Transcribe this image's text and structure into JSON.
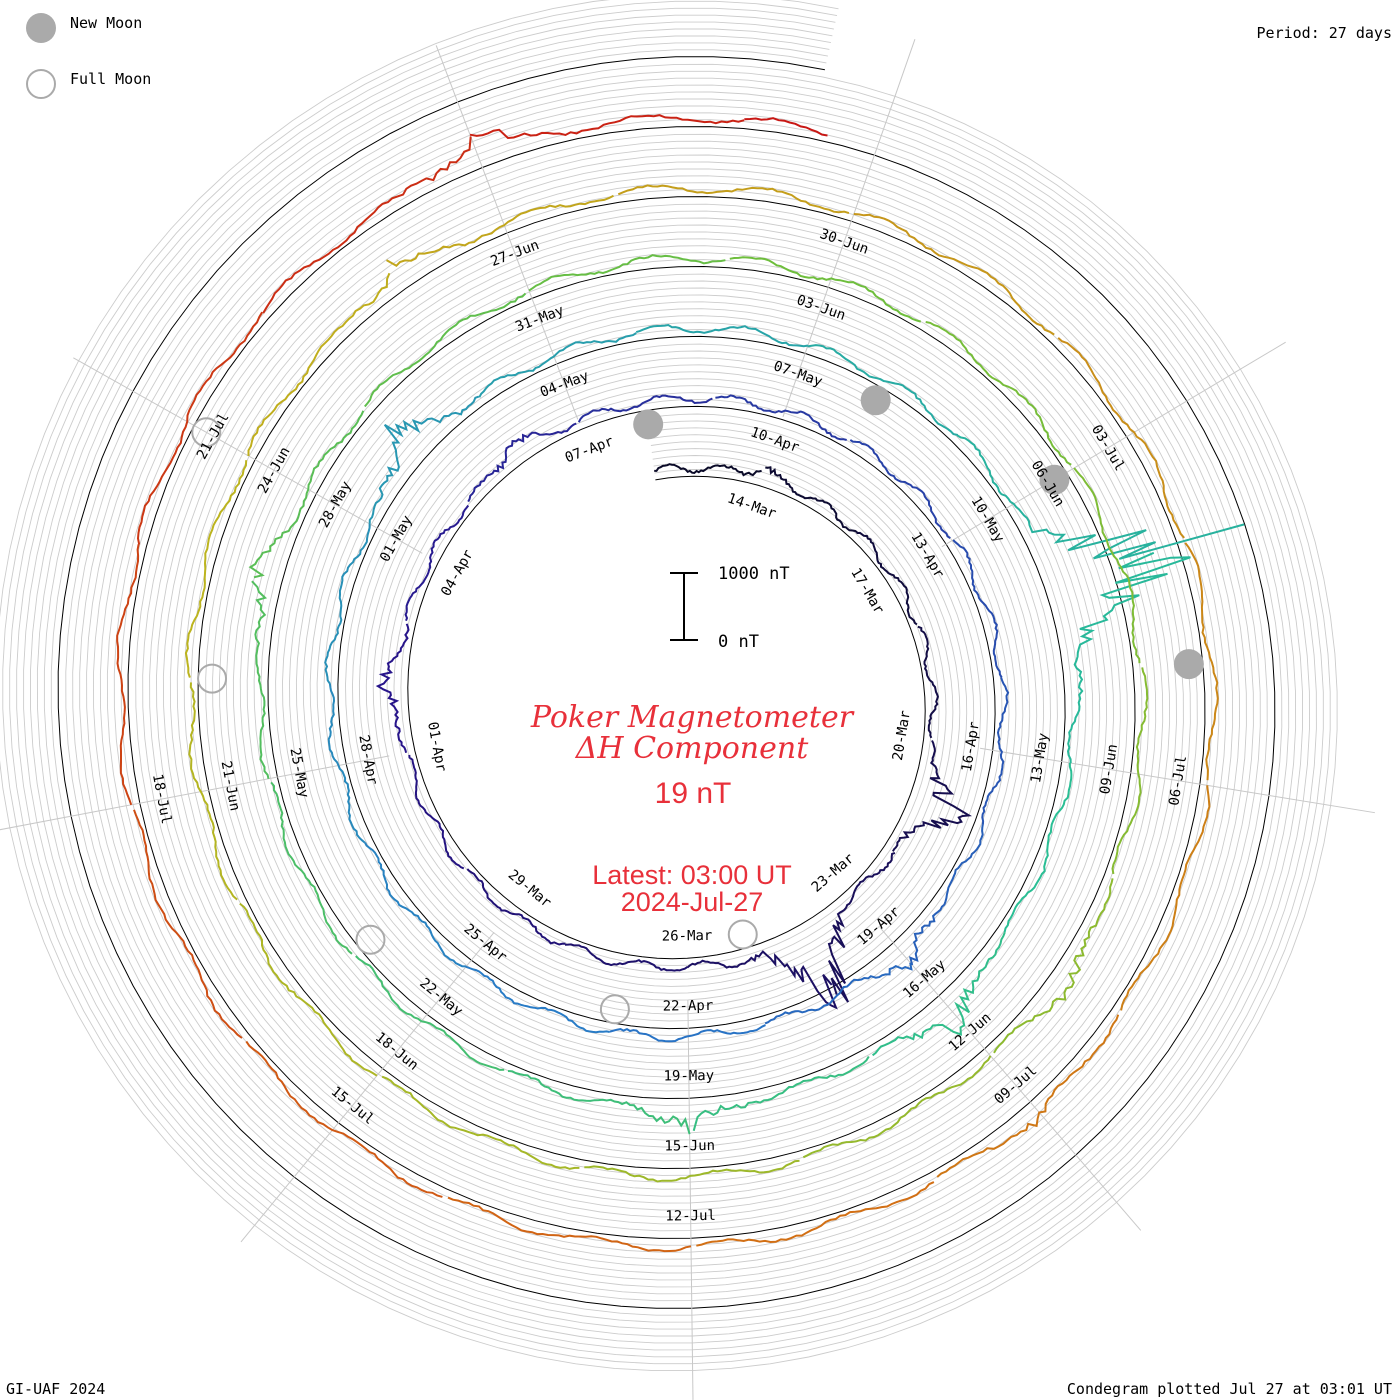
{
  "header": {
    "new_moon_label": "New Moon",
    "full_moon_label": "Full Moon",
    "period_label": "Period: 27 days"
  },
  "footer": {
    "credit": "GI-UAF 2024",
    "plotted": "Condegram plotted Jul 27 at 03:01 UT"
  },
  "scale_bar": {
    "top_label": "1000 nT",
    "bottom_label": "0 nT",
    "top_value": 1000,
    "bottom_value": 0
  },
  "center": {
    "title_line1": "Poker Magnetometer",
    "title_line2": "ΔH Component",
    "current_value": "19 nT",
    "latest_label": "Latest: 03:00 UT",
    "latest_date": "2024-Jul-27"
  },
  "colors": {
    "text_accent": "#e8303a",
    "new_moon": "#aaaaaa",
    "full_moon_outline": "#aaaaaa",
    "grid": "#c8c8c8"
  },
  "chart_data": {
    "type": "line",
    "subtype": "condegram spiral (polar, 27-day period)",
    "period_days": 27,
    "start_date": "2024-03-12",
    "end_date": "2024-07-27",
    "date_labels": [
      "14-Mar",
      "17-Mar",
      "20-Mar",
      "23-Mar",
      "26-Mar",
      "29-Mar",
      "01-Apr",
      "04-Apr",
      "07-Apr",
      "10-Apr",
      "13-Apr",
      "16-Apr",
      "19-Apr",
      "22-Apr",
      "25-Apr",
      "28-Apr",
      "01-May",
      "04-May",
      "07-May",
      "10-May",
      "13-May",
      "16-May",
      "19-May",
      "22-May",
      "25-May",
      "28-May",
      "31-May",
      "03-Jun",
      "06-Jun",
      "09-Jun",
      "12-Jun",
      "15-Jun",
      "18-Jun",
      "21-Jun",
      "24-Jun",
      "27-Jun",
      "30-Jun",
      "03-Jul",
      "06-Jul",
      "09-Jul",
      "12-Jul",
      "15-Jul",
      "18-Jul",
      "21-Jul"
    ],
    "new_moon_dates": [
      "2024-04-08",
      "2024-05-08",
      "2024-06-06",
      "2024-07-05"
    ],
    "full_moon_dates": [
      "2024-03-25",
      "2024-04-23",
      "2024-05-23",
      "2024-06-22",
      "2024-07-21"
    ],
    "disturbances": [
      {
        "date": "2024-03-14",
        "delta_nT": 150
      },
      {
        "date": "2024-03-21",
        "delta_nT": 700
      },
      {
        "date": "2024-03-24",
        "delta_nT": 1200
      },
      {
        "date": "2024-04-02",
        "delta_nT": 250
      },
      {
        "date": "2024-04-06",
        "delta_nT": 200
      },
      {
        "date": "2024-04-19",
        "delta_nT": 300
      },
      {
        "date": "2024-05-02",
        "delta_nT": 450
      },
      {
        "date": "2024-05-11",
        "delta_nT": 2000
      },
      {
        "date": "2024-05-16",
        "delta_nT": 400
      },
      {
        "date": "2024-05-19",
        "delta_nT": 300
      },
      {
        "date": "2024-05-27",
        "delta_nT": 300
      },
      {
        "date": "2024-06-11",
        "delta_nT": 250
      },
      {
        "date": "2024-06-26",
        "delta_nT": 250
      },
      {
        "date": "2024-07-09",
        "delta_nT": 150
      },
      {
        "date": "2024-07-24",
        "delta_nT": 300
      }
    ],
    "ylim": [
      0,
      1000
    ]
  }
}
